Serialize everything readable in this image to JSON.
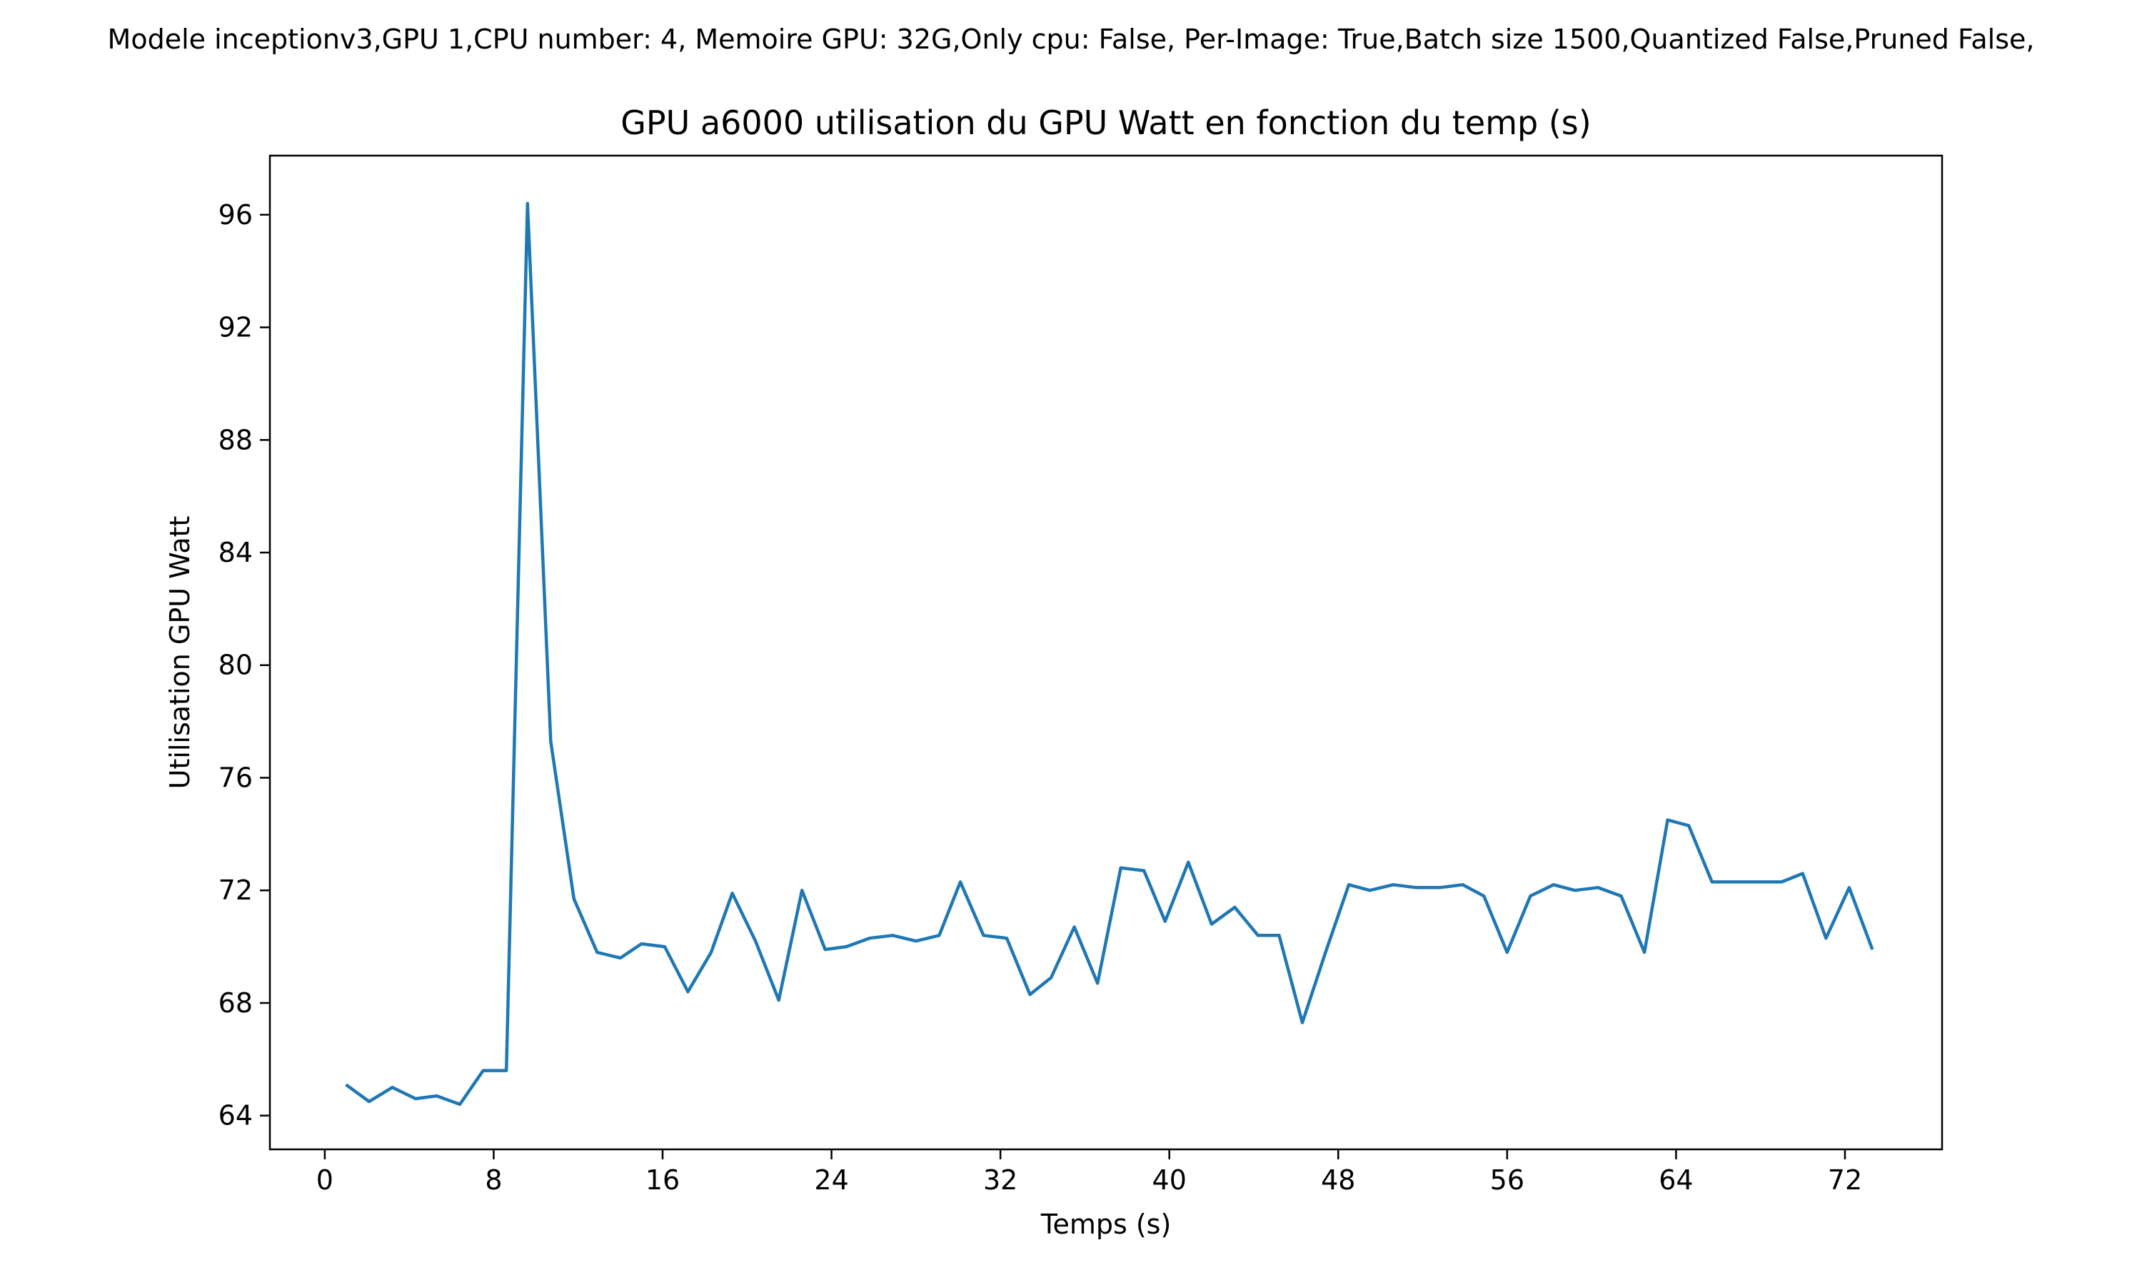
{
  "page": {
    "suptitle": "Modele inceptionv3,GPU 1,CPU number: 4, Memoire GPU: 32G,Only cpu: False, Per-Image: True,Batch size 1500,Quantized False,Pruned False,"
  },
  "chart_data": {
    "type": "line",
    "title": "GPU a6000 utilisation du GPU Watt en fonction du temp (s)",
    "xlabel": "Temps (s)",
    "ylabel": "Utilisation GPU Watt",
    "xlim": [
      -2.6,
      76.6
    ],
    "ylim": [
      62.8,
      98.1
    ],
    "xticks": [
      0,
      8,
      16,
      24,
      32,
      40,
      48,
      56,
      64,
      72
    ],
    "yticks": [
      64,
      68,
      72,
      76,
      80,
      84,
      88,
      92,
      96
    ],
    "grid": false,
    "line_color": "#1f77b4",
    "series": [
      {
        "x": [
          1.0,
          2.1,
          3.2,
          4.3,
          5.3,
          6.4,
          7.5,
          8.6,
          9.6,
          10.7,
          11.8,
          12.9,
          14.0,
          15.0,
          16.1,
          17.2,
          18.3,
          19.3,
          20.4,
          21.5,
          22.6,
          23.7,
          24.7,
          25.8,
          26.9,
          28.0,
          29.1,
          30.1,
          31.2,
          32.3,
          33.4,
          34.4,
          35.5,
          36.6,
          37.7,
          38.8,
          39.8,
          40.9,
          42.0,
          43.1,
          44.2,
          45.2,
          46.3,
          47.4,
          48.5,
          49.5,
          50.6,
          51.7,
          52.8,
          53.9,
          54.9,
          56.0,
          57.1,
          58.2,
          59.2,
          60.3,
          61.4,
          62.5,
          63.6,
          64.6,
          65.7,
          66.8,
          67.9,
          69.0,
          70.0,
          71.1,
          72.2,
          73.3
        ],
        "y": [
          65.1,
          64.5,
          65.0,
          64.6,
          64.7,
          64.4,
          65.6,
          65.6,
          96.4,
          77.3,
          71.7,
          69.8,
          69.6,
          70.1,
          70.0,
          68.4,
          69.8,
          71.9,
          70.2,
          68.1,
          72.0,
          69.9,
          70.0,
          70.3,
          70.4,
          70.2,
          70.4,
          72.3,
          70.4,
          70.3,
          68.3,
          68.9,
          70.7,
          68.7,
          72.8,
          72.7,
          70.9,
          73.0,
          70.8,
          71.4,
          70.4,
          70.4,
          67.3,
          69.8,
          72.2,
          72.0,
          72.2,
          72.1,
          72.1,
          72.2,
          71.8,
          69.8,
          71.8,
          72.2,
          72.0,
          72.1,
          71.8,
          69.8,
          74.5,
          74.3,
          72.3,
          72.3,
          72.3,
          72.3,
          72.6,
          70.3,
          72.1,
          69.9
        ]
      }
    ]
  }
}
